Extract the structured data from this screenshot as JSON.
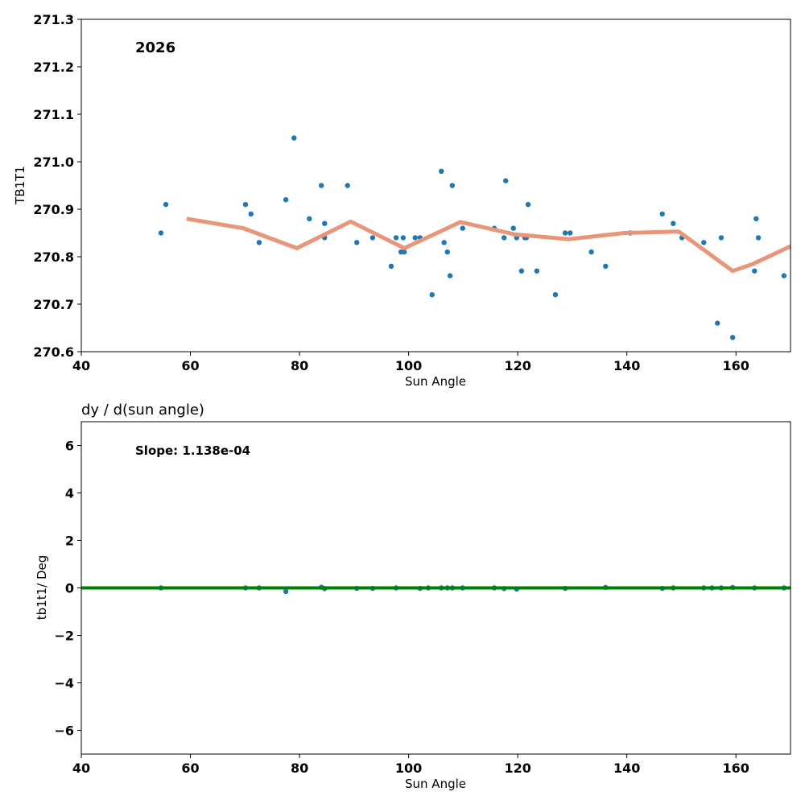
{
  "chart_data": [
    {
      "type": "scatter",
      "annotation": "2026",
      "xlabel": "Sun Angle",
      "ylabel": "TB1T1",
      "xlim": [
        40,
        170
      ],
      "ylim": [
        270.6,
        271.3
      ],
      "xticks": [
        "40",
        "60",
        "80",
        "100",
        "120",
        "140",
        "160"
      ],
      "yticks": [
        "270.6",
        "270.7",
        "270.8",
        "270.9",
        "271.0",
        "271.1",
        "271.2",
        "271.3"
      ],
      "point_color": "#1f77b4",
      "line_color": "#e8967a",
      "points": [
        [
          54.6,
          270.85
        ],
        [
          55.5,
          270.91
        ],
        [
          70.1,
          270.91
        ],
        [
          71.1,
          270.89
        ],
        [
          72.6,
          270.83
        ],
        [
          77.5,
          270.92
        ],
        [
          79.0,
          271.05
        ],
        [
          81.8,
          270.88
        ],
        [
          84.0,
          270.95
        ],
        [
          84.6,
          270.87
        ],
        [
          84.6,
          270.84
        ],
        [
          88.8,
          270.95
        ],
        [
          90.5,
          270.83
        ],
        [
          93.4,
          270.84
        ],
        [
          96.8,
          270.78
        ],
        [
          97.7,
          270.84
        ],
        [
          98.6,
          270.81
        ],
        [
          99.0,
          270.84
        ],
        [
          99.2,
          270.81
        ],
        [
          101.2,
          270.84
        ],
        [
          102.1,
          270.84
        ],
        [
          104.3,
          270.72
        ],
        [
          106.0,
          270.98
        ],
        [
          106.5,
          270.83
        ],
        [
          107.1,
          270.81
        ],
        [
          107.6,
          270.76
        ],
        [
          108.0,
          270.95
        ],
        [
          109.9,
          270.86
        ],
        [
          115.7,
          270.86
        ],
        [
          117.5,
          270.84
        ],
        [
          117.8,
          270.96
        ],
        [
          119.2,
          270.86
        ],
        [
          119.8,
          270.84
        ],
        [
          120.7,
          270.77
        ],
        [
          121.3,
          270.84
        ],
        [
          121.6,
          270.84
        ],
        [
          121.9,
          270.91
        ],
        [
          123.5,
          270.77
        ],
        [
          126.9,
          270.72
        ],
        [
          128.7,
          270.85
        ],
        [
          129.6,
          270.85
        ],
        [
          133.5,
          270.81
        ],
        [
          136.1,
          270.78
        ],
        [
          140.6,
          270.85
        ],
        [
          146.5,
          270.89
        ],
        [
          148.5,
          270.87
        ],
        [
          150.1,
          270.84
        ],
        [
          154.1,
          270.83
        ],
        [
          156.6,
          270.66
        ],
        [
          157.3,
          270.84
        ],
        [
          159.4,
          270.63
        ],
        [
          163.4,
          270.77
        ],
        [
          163.7,
          270.88
        ],
        [
          164.1,
          270.84
        ],
        [
          168.8,
          270.76
        ]
      ],
      "line": [
        [
          59.3,
          270.88
        ],
        [
          69.7,
          270.86
        ],
        [
          79.5,
          270.818
        ],
        [
          89.4,
          270.874
        ],
        [
          99.2,
          270.818
        ],
        [
          109.5,
          270.873
        ],
        [
          119.5,
          270.847
        ],
        [
          129.4,
          270.837
        ],
        [
          139.6,
          270.85
        ],
        [
          149.5,
          270.853
        ],
        [
          159.4,
          270.77
        ],
        [
          163.2,
          270.785
        ],
        [
          170,
          270.822
        ]
      ]
    },
    {
      "type": "scatter",
      "title": "dy / d(sun angle)",
      "annotation": "Slope: 1.138e-04",
      "xlabel": "Sun Angle",
      "ylabel": "tb1t1/ Deg",
      "xlim": [
        40,
        170
      ],
      "ylim": [
        -7,
        7
      ],
      "xticks": [
        "40",
        "60",
        "80",
        "100",
        "120",
        "140",
        "160"
      ],
      "yticks": [
        "−6",
        "−4",
        "−2",
        "0",
        "2",
        "4",
        "6"
      ],
      "point_color": "#1f77b4",
      "line_color": "#008000",
      "points": [
        [
          54.6,
          0
        ],
        [
          70.1,
          0
        ],
        [
          72.6,
          0
        ],
        [
          77.5,
          -0.15
        ],
        [
          84.0,
          0.03
        ],
        [
          84.6,
          -0.03
        ],
        [
          90.5,
          -0.02
        ],
        [
          93.4,
          -0.02
        ],
        [
          97.7,
          0
        ],
        [
          102.1,
          -0.02
        ],
        [
          103.6,
          0
        ],
        [
          106.0,
          0
        ],
        [
          107.1,
          0
        ],
        [
          108.0,
          0
        ],
        [
          109.9,
          0
        ],
        [
          115.7,
          0
        ],
        [
          117.5,
          -0.03
        ],
        [
          119.8,
          -0.05
        ],
        [
          128.7,
          -0.02
        ],
        [
          136.1,
          0.02
        ],
        [
          146.5,
          -0.02
        ],
        [
          148.5,
          0
        ],
        [
          154.1,
          0
        ],
        [
          155.6,
          0
        ],
        [
          157.3,
          0
        ],
        [
          159.4,
          0.02
        ],
        [
          163.4,
          0
        ],
        [
          168.8,
          0
        ]
      ],
      "line": [
        [
          40,
          0
        ],
        [
          170,
          0
        ]
      ]
    }
  ]
}
